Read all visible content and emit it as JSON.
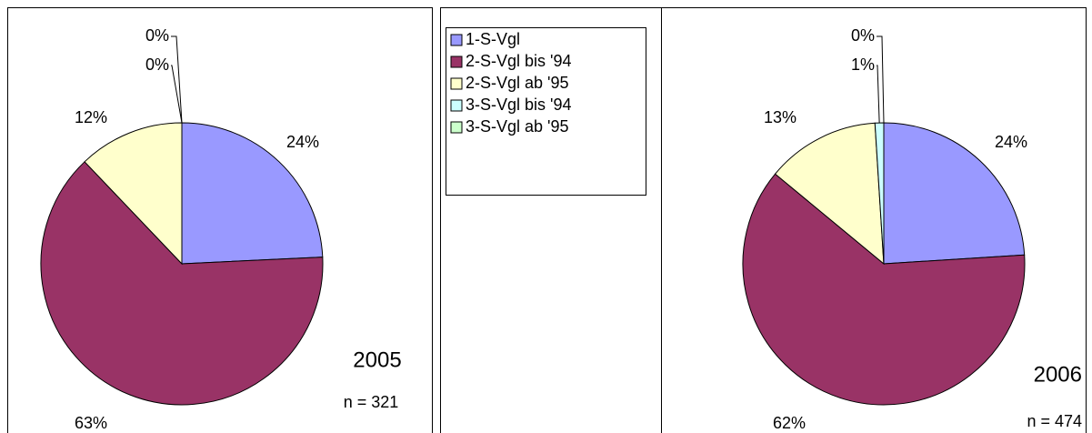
{
  "legend": {
    "labels": [
      "1-S-Vgl",
      "2-S-Vgl bis '94",
      "2-S-Vgl ab '95",
      "3-S-Vgl bis '94",
      "3-S-Vgl ab '95"
    ],
    "colors": [
      "#9999ff",
      "#993366",
      "#ffffcc",
      "#ccffff",
      "#ccffcc"
    ]
  },
  "chart_data": [
    {
      "type": "pie",
      "title": "2005",
      "note": "n = 321",
      "values": [
        24,
        63,
        12,
        0,
        0
      ],
      "value_labels": [
        "24%",
        "63%",
        "12%",
        "0%",
        "0%"
      ]
    },
    {
      "type": "pie",
      "title": "2006",
      "note": "n = 474",
      "values": [
        24,
        62,
        13,
        1,
        0
      ],
      "value_labels": [
        "24%",
        "62%",
        "13%",
        "1%",
        "0%"
      ]
    }
  ]
}
